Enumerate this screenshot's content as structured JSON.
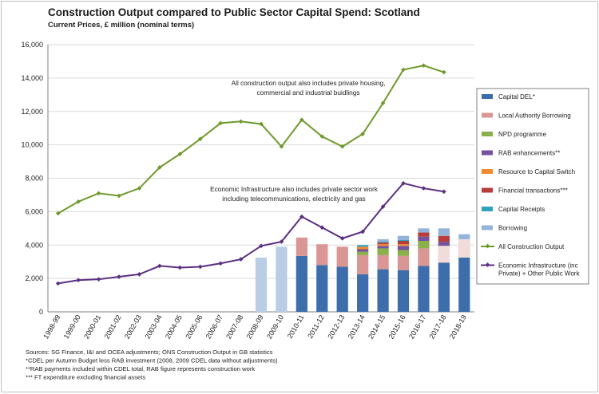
{
  "chart_data": {
    "type": "bar",
    "title": "Construction Output compared to Public Sector Capital Spend: Scotland",
    "subtitle": "Current Prices, £ million (nominal terms)",
    "xlabel": "",
    "ylabel": "",
    "ylim": [
      0,
      16000
    ],
    "yticks": [
      "0",
      "2,000",
      "4,000",
      "6,000",
      "8,000",
      "10,000",
      "12,000",
      "14,000",
      "16,000"
    ],
    "categories": [
      "1998-99",
      "1999-00",
      "2000-01",
      "2001-02",
      "2002-03",
      "2003-04",
      "2004-05",
      "2005-06",
      "2006-07",
      "2007-08",
      "2008-09",
      "2009-10",
      "2010-11",
      "2011-12",
      "2012-13",
      "2013-14",
      "2014-15",
      "2015-16",
      "2016-17",
      "2017-18",
      "2018-19"
    ],
    "grid": true,
    "legend_position": "right",
    "bar_series": [
      {
        "name": "Capital DEL*",
        "color": "#3d6eab",
        "values": [
          null,
          null,
          null,
          null,
          null,
          null,
          null,
          null,
          null,
          null,
          3250,
          3900,
          3350,
          2800,
          2700,
          2250,
          2550,
          2500,
          2750,
          2950,
          3250
        ]
      },
      {
        "name": "Local Authority Borrowing",
        "color": "#d99694",
        "values": [
          null,
          null,
          null,
          null,
          null,
          null,
          null,
          null,
          null,
          null,
          null,
          null,
          1100,
          1250,
          1200,
          1150,
          850,
          850,
          1050,
          650,
          0
        ]
      },
      {
        "name": "NPD programme",
        "color": "#8ab04a",
        "values": [
          null,
          null,
          null,
          null,
          null,
          null,
          null,
          null,
          null,
          null,
          null,
          null,
          null,
          null,
          0,
          200,
          400,
          350,
          450,
          350,
          300
        ]
      },
      {
        "name": "RAB enhancements**",
        "color": "#7452a0",
        "values": [
          null,
          null,
          null,
          null,
          null,
          null,
          null,
          null,
          null,
          null,
          null,
          null,
          null,
          null,
          0,
          150,
          150,
          250,
          250,
          250,
          250
        ]
      },
      {
        "name": "Resource to Capital Switch",
        "color": "#f08a2f",
        "values": [
          null,
          null,
          null,
          null,
          null,
          null,
          null,
          null,
          null,
          null,
          null,
          null,
          null,
          null,
          0,
          150,
          100,
          100,
          0,
          0,
          0
        ]
      },
      {
        "name": "Financial transactions***",
        "color": "#b83c3a",
        "values": [
          null,
          null,
          null,
          null,
          null,
          null,
          null,
          null,
          null,
          null,
          null,
          null,
          null,
          null,
          0,
          0,
          100,
          200,
          250,
          350,
          350
        ]
      },
      {
        "name": "Capital Receipts",
        "color": "#31a2bb",
        "values": [
          null,
          null,
          null,
          null,
          null,
          null,
          null,
          null,
          null,
          null,
          null,
          null,
          null,
          null,
          0,
          100,
          50,
          50,
          0,
          0,
          0
        ]
      },
      {
        "name": "Borrowing",
        "color": "#94b3db",
        "values": [
          null,
          null,
          null,
          null,
          null,
          null,
          null,
          null,
          null,
          null,
          null,
          null,
          null,
          null,
          0,
          0,
          150,
          250,
          250,
          450,
          500
        ]
      }
    ],
    "line_series": [
      {
        "name": "All Construction Output",
        "color": "#6e9a2c",
        "values": [
          5900,
          6600,
          7100,
          6950,
          7400,
          8650,
          9450,
          10350,
          11300,
          11400,
          11250,
          9900,
          11500,
          10500,
          9900,
          10650,
          12500,
          14500,
          14750,
          14350,
          null
        ]
      },
      {
        "name": "Economic Infrastructure (inc Private) + Other Public Work",
        "color": "#5c2f82",
        "values": [
          1700,
          1900,
          1950,
          2100,
          2250,
          2750,
          2650,
          2700,
          2900,
          3150,
          3950,
          4200,
          5700,
          5050,
          4400,
          4800,
          6300,
          7700,
          7400,
          7200,
          null
        ]
      }
    ],
    "annotations": [
      {
        "lines": [
          "All construction output also includes private housing,",
          "commercial and industrial buidlings"
        ]
      },
      {
        "lines": [
          "Economic Infrastructure also includes private sector work",
          "including telecommunications, electricity and gas"
        ]
      }
    ],
    "footnotes": [
      "Sources: SG Finance, I&I and OCEA adjustments; ONS Construction Output in GB statistics",
      "*CDEL per Autumn Budget less RAB investment (2008, 2009 CDEL data without adjustments)",
      "**RAB payments included within CDEL total, RAB figure represents construction work",
      "*** FT expenditure excluding financial assets"
    ],
    "legend": [
      {
        "label": "Capital DEL*",
        "kind": "box",
        "color": "#3d6eab"
      },
      {
        "label": "Local Authority Borrowing",
        "kind": "box",
        "color": "#d99694"
      },
      {
        "label": "NPD programme",
        "kind": "box",
        "color": "#8ab04a"
      },
      {
        "label": "RAB enhancements**",
        "kind": "box",
        "color": "#7452a0"
      },
      {
        "label": "Resource to Capital Switch",
        "kind": "box",
        "color": "#f08a2f"
      },
      {
        "label": "Financial transactions***",
        "kind": "box",
        "color": "#b83c3a"
      },
      {
        "label": "Capital Receipts",
        "kind": "box",
        "color": "#31a2bb"
      },
      {
        "label": "Borrowing",
        "kind": "box",
        "color": "#94b3db"
      },
      {
        "label": "All Construction Output",
        "kind": "line",
        "color": "#6e9a2c"
      },
      {
        "label": [
          "Economic Infrastructure (inc",
          "Private) + Other Public Work"
        ],
        "kind": "line",
        "color": "#5c2f82"
      }
    ]
  }
}
